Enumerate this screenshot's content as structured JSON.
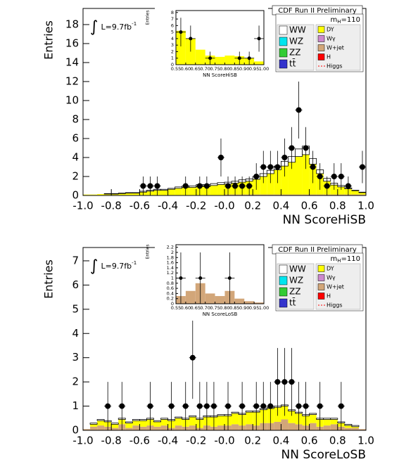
{
  "chart_data": [
    {
      "type": "histogram",
      "title": "CDF Run II Preliminary",
      "x_label": "NN ScoreHiSB",
      "y_label": "Entries",
      "lumi": [
        "∫",
        "L=9.7fb",
        "-1"
      ],
      "mass": [
        "m",
        "H",
        "=110"
      ],
      "xlim": [
        -1,
        1
      ],
      "ylim": [
        0,
        19.7
      ],
      "xticks": [
        {
          "value": -1,
          "label": "-1.0"
        },
        -0.8,
        -0.6,
        -0.4,
        -0.2,
        {
          "value": 0,
          "label": "-0.0"
        },
        0.2,
        0.4,
        0.6,
        0.8,
        {
          "value": 1,
          "label": "1.0"
        }
      ],
      "yticks": [
        0,
        2,
        4,
        6,
        8,
        10,
        12,
        14,
        16,
        18
      ],
      "bins": [
        -1,
        -0.95,
        -0.9,
        -0.85,
        -0.8,
        -0.75,
        -0.7,
        -0.65,
        -0.6,
        -0.55,
        -0.5,
        -0.45,
        -0.4,
        -0.35,
        -0.3,
        -0.25,
        -0.2,
        -0.15,
        -0.1,
        -0.05,
        0,
        0.05,
        0.1,
        0.15,
        0.2,
        0.25,
        0.3,
        0.35,
        0.4,
        0.45,
        0.5,
        0.55,
        0.6,
        0.65,
        0.7,
        0.75,
        0.8,
        0.85,
        0.9,
        0.95,
        1
      ],
      "series": [
        {
          "name": "WW",
          "color": "#ffffff",
          "outline": "#000000",
          "values": [
            0,
            0,
            0,
            0.05,
            0.05,
            0.05,
            0.05,
            0.05,
            0.1,
            0.1,
            0.1,
            0.1,
            0.1,
            0.15,
            0.15,
            0.15,
            0.2,
            0.2,
            0.2,
            0.2,
            0.2,
            0.2,
            0.25,
            0.25,
            0.3,
            0.3,
            0.35,
            0.4,
            0.5,
            0.6,
            0.8,
            0.9,
            0.6,
            0.4,
            0.3,
            0.2,
            0.15,
            0.1,
            0.05,
            0.05
          ]
        },
        {
          "name": "WZ",
          "color": "#00e5ee"
        },
        {
          "name": "ZZ",
          "color": "#33cc33"
        },
        {
          "name": "tt̄",
          "color": "#3333cc"
        },
        {
          "name": "DY",
          "color": "#ffff00",
          "values": [
            0.05,
            0.05,
            0.1,
            0.1,
            0.1,
            0.15,
            0.2,
            0.2,
            0.3,
            0.4,
            0.5,
            0.5,
            0.6,
            0.7,
            0.8,
            0.8,
            0.9,
            0.9,
            1.0,
            1.1,
            1.1,
            1.2,
            1.3,
            1.4,
            1.6,
            1.9,
            2.2,
            2.6,
            3.0,
            3.4,
            4.0,
            4.2,
            3.2,
            2.2,
            1.4,
            1.0,
            0.8,
            0.6,
            0.4,
            0.2
          ]
        },
        {
          "name": "Wγ",
          "color": "#cc88cc"
        },
        {
          "name": "W+jet",
          "color": "#d2a679",
          "values": [
            0.05,
            0.05,
            0.05,
            0.05,
            0.05,
            0.05,
            0.05,
            0.05,
            0.05,
            0.05,
            0.05,
            0.05,
            0.05,
            0.05,
            0.05,
            0.05,
            0.05,
            0.05,
            0.05,
            0.05,
            0.1,
            0.1,
            0.1,
            0.1,
            0.1,
            0.1,
            0.1,
            0.1,
            0.1,
            0.1,
            0.1,
            0.1,
            0.1,
            0.1,
            0.1,
            0.1,
            0.1,
            0.1,
            0.1,
            0.1
          ]
        },
        {
          "name": "H",
          "color": "#ff0000"
        },
        {
          "name": "Higgs",
          "color": "#ff0000",
          "line_style": "dotted"
        }
      ],
      "data": [
        null,
        null,
        null,
        null,
        null,
        null,
        null,
        null,
        1,
        1,
        1,
        null,
        null,
        null,
        1,
        null,
        1,
        1,
        null,
        4,
        1,
        1,
        1,
        1,
        2,
        3,
        3,
        3,
        4,
        5,
        9,
        5,
        3,
        2,
        1,
        2,
        2,
        1,
        null,
        3
      ],
      "errors": [
        null,
        null,
        null,
        null,
        null,
        null,
        null,
        null,
        1,
        1,
        1,
        null,
        null,
        null,
        1,
        null,
        1,
        1,
        null,
        2,
        1,
        1,
        1,
        1,
        1.4,
        1.7,
        1.7,
        1.7,
        2,
        2.2,
        3,
        2.2,
        1.7,
        1.4,
        1,
        1.4,
        1.4,
        1,
        null,
        1.7
      ]
    },
    {
      "type": "histogram",
      "x_label": "NN ScoreHiSB",
      "y_label": "Entries",
      "xlim": [
        0.55,
        1
      ],
      "ylim": [
        0,
        8.3
      ],
      "xticks": [
        0.55,
        {
          "value": 0.6,
          "label": "0.60"
        },
        0.65,
        {
          "value": 0.7,
          "label": "0.70"
        },
        0.75,
        {
          "value": 0.8,
          "label": "0.80"
        },
        0.85,
        {
          "value": 0.9,
          "label": "0.90"
        },
        0.95,
        {
          "value": 1,
          "label": "1.00"
        }
      ],
      "yticks": [
        0,
        1,
        2,
        3,
        4,
        5,
        6,
        7,
        8
      ],
      "bins": [
        0.55,
        0.6,
        0.65,
        0.7,
        0.75,
        0.8,
        0.85,
        0.9,
        0.95,
        1
      ],
      "color": "#ffff00",
      "values": [
        5.2,
        4.0,
        2.3,
        1.4,
        1.2,
        1.4,
        1.3,
        1.0,
        0.5
      ],
      "data": [
        5,
        4,
        null,
        1,
        null,
        null,
        1,
        1,
        4
      ],
      "errors": [
        2.2,
        2,
        null,
        1,
        null,
        null,
        1,
        1,
        2
      ]
    },
    {
      "type": "histogram",
      "title": "CDF Run II Preliminary",
      "x_label": "NN ScoreLoSB",
      "y_label": "Entries",
      "lumi": [
        "∫",
        "L=9.7fb",
        "-1"
      ],
      "mass": [
        "m",
        "H",
        "=110"
      ],
      "xlim": [
        -1,
        1
      ],
      "ylim": [
        0,
        7.55
      ],
      "xticks": [
        {
          "value": -1,
          "label": "-1.0"
        },
        -0.8,
        -0.6,
        -0.4,
        -0.2,
        {
          "value": 0,
          "label": "-0.0"
        },
        0.2,
        0.4,
        0.6,
        0.8,
        {
          "value": 1,
          "label": "1.0"
        }
      ],
      "yticks": [
        0,
        1,
        2,
        3,
        4,
        5,
        6,
        7
      ],
      "bins": [
        -1,
        -0.95,
        -0.9,
        -0.85,
        -0.8,
        -0.75,
        -0.7,
        -0.65,
        -0.6,
        -0.55,
        -0.5,
        -0.45,
        -0.4,
        -0.35,
        -0.3,
        -0.25,
        -0.2,
        -0.15,
        -0.1,
        -0.05,
        0,
        0.05,
        0.1,
        0.15,
        0.2,
        0.25,
        0.3,
        0.35,
        0.4,
        0.45,
        0.5,
        0.55,
        0.6,
        0.65,
        0.7,
        0.75,
        0.8,
        0.85,
        0.9,
        0.95,
        1
      ],
      "series": [
        {
          "name": "WW",
          "color": "#ffffff",
          "outline": "#000000",
          "values": [
            0,
            0.05,
            0.05,
            0.05,
            0.05,
            0.05,
            0.05,
            0.05,
            0.05,
            0.05,
            0.05,
            0.05,
            0.05,
            0.05,
            0.05,
            0.05,
            0.05,
            0.05,
            0.05,
            0.05,
            0.05,
            0.05,
            0.05,
            0.05,
            0.05,
            0.05,
            0.05,
            0.05,
            0.05,
            0.05,
            0.05,
            0.05,
            0.05,
            0.05,
            0.05,
            0.05,
            0.05,
            0.05,
            0.05,
            0
          ]
        },
        {
          "name": "WZ",
          "color": "#00e5ee"
        },
        {
          "name": "ZZ",
          "color": "#33cc33"
        },
        {
          "name": "tt̄",
          "color": "#3333cc"
        },
        {
          "name": "DY",
          "color": "#ffff00",
          "values": [
            0,
            0.1,
            0.2,
            0.2,
            0.15,
            0.2,
            0.2,
            0.2,
            0.25,
            0.25,
            0.2,
            0.25,
            0.3,
            0.3,
            0.3,
            0.35,
            0.35,
            0.35,
            0.4,
            0.4,
            0.4,
            0.45,
            0.45,
            0.5,
            0.55,
            0.55,
            0.6,
            0.6,
            0.55,
            0.5,
            0.45,
            0.4,
            0.35,
            0.3,
            0.25,
            0.2,
            0.15,
            0.1,
            0.05,
            0
          ]
        },
        {
          "name": "Wγ",
          "color": "#cc88cc"
        },
        {
          "name": "W+jet",
          "color": "#d2a679",
          "values": [
            0.05,
            0.15,
            0.2,
            0.15,
            0.1,
            0.25,
            0.1,
            0.2,
            0.15,
            0.2,
            0.15,
            0.2,
            0.1,
            0.2,
            0.15,
            0.2,
            0.1,
            0.2,
            0.15,
            0.2,
            0.2,
            0.25,
            0.2,
            0.25,
            0.2,
            0.3,
            0.3,
            0.35,
            0.45,
            0.3,
            0.25,
            0.2,
            0.3,
            0.15,
            0.2,
            0.25,
            0.15,
            0.1,
            0.1,
            0.05
          ]
        },
        {
          "name": "H",
          "color": "#ff0000"
        },
        {
          "name": "Higgs",
          "color": "#ff0000",
          "line_style": "dotted"
        }
      ],
      "data": [
        null,
        null,
        null,
        1,
        null,
        1,
        null,
        null,
        null,
        1,
        null,
        null,
        1,
        null,
        1,
        3,
        1,
        1,
        1,
        null,
        1,
        null,
        1,
        null,
        1,
        1,
        1,
        2,
        2,
        2,
        1,
        1,
        null,
        1,
        null,
        null,
        1,
        null,
        null,
        null
      ],
      "errors": [
        null,
        null,
        null,
        1,
        null,
        1,
        null,
        null,
        null,
        1,
        null,
        null,
        1,
        null,
        1,
        1.7,
        1,
        1,
        1,
        null,
        1,
        null,
        1,
        null,
        1,
        1,
        1,
        1.4,
        1.4,
        1.4,
        1,
        1,
        null,
        1,
        null,
        null,
        1,
        null,
        null,
        null
      ]
    },
    {
      "type": "histogram",
      "x_label": "NN ScoreLoSB",
      "y_label": "Entries",
      "xlim": [
        0.55,
        1
      ],
      "ylim": [
        0,
        2.3
      ],
      "xticks": [
        0.55,
        {
          "value": 0.6,
          "label": "0.60"
        },
        0.65,
        {
          "value": 0.7,
          "label": "0.70"
        },
        0.75,
        {
          "value": 0.8,
          "label": "0.80"
        },
        0.85,
        {
          "value": 0.9,
          "label": "0.90"
        },
        0.95,
        {
          "value": 1,
          "label": "1.00"
        }
      ],
      "yticks": [
        0,
        0.2,
        0.4,
        0.6,
        0.8,
        1,
        1.2,
        1.4,
        1.6,
        1.8,
        2,
        2.2
      ],
      "bins": [
        0.55,
        0.6,
        0.65,
        0.7,
        0.75,
        0.8,
        0.85,
        0.9,
        0.95,
        1
      ],
      "color": "#d2a679",
      "values": [
        0.3,
        0.5,
        0.8,
        0.4,
        0.3,
        0.5,
        0.2,
        0.1,
        0.05
      ],
      "data": [
        1,
        null,
        1,
        null,
        null,
        1,
        null,
        null,
        null
      ],
      "errors": [
        1,
        null,
        1,
        null,
        null,
        1,
        null,
        null,
        null
      ]
    }
  ]
}
